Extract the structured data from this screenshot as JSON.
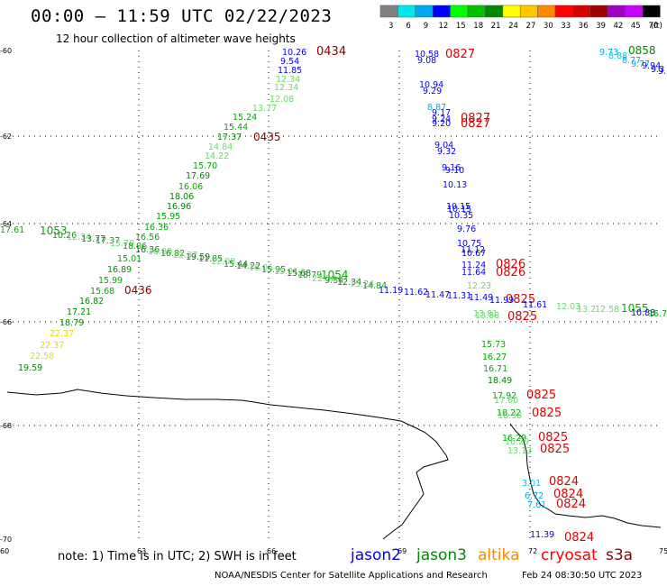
{
  "header": {
    "title": "00:00 – 11:59 UTC 02/22/2023",
    "subtitle": "12 hour collection of altimeter wave heights"
  },
  "colorbar": {
    "ticks": [
      "3",
      "6",
      "9",
      "12",
      "15",
      "18",
      "21",
      "24",
      "27",
      "30",
      "33",
      "36",
      "39",
      "42",
      "45",
      "70"
    ],
    "unit": "(ft)",
    "colors": [
      "#808080",
      "#00e8e8",
      "#00a8f0",
      "#0000ff",
      "#00ff00",
      "#00c000",
      "#008800",
      "#ffff00",
      "#ffc800",
      "#ff8800",
      "#ff0000",
      "#d80000",
      "#a00000",
      "#a000c0",
      "#c800ff",
      "#000000"
    ]
  },
  "map": {
    "y_labels": [
      "-60",
      "-62",
      "-64",
      "-66",
      "-68",
      "-70"
    ],
    "x_labels": [
      "60",
      "63",
      "66",
      "69",
      "72",
      "75"
    ],
    "lon_range": [
      60,
      75
    ],
    "lat_range": [
      -70,
      -60
    ]
  },
  "tracks": {
    "time_labels": [
      {
        "text": "0434",
        "color": "#8b0000"
      },
      {
        "text": "0435",
        "color": "#8b0000"
      },
      {
        "text": "0436",
        "color": "#8b0000"
      },
      {
        "text": "0827",
        "color": "#e00000"
      },
      {
        "text": "0827",
        "color": "#e00000"
      },
      {
        "text": "0827",
        "color": "#e00000"
      },
      {
        "text": "0826",
        "color": "#e00000"
      },
      {
        "text": "0826",
        "color": "#e00000"
      },
      {
        "text": "0825",
        "color": "#e00000"
      },
      {
        "text": "0825",
        "color": "#e00000"
      },
      {
        "text": "0825",
        "color": "#e00000"
      },
      {
        "text": "0825",
        "color": "#e00000"
      },
      {
        "text": "0825",
        "color": "#e00000"
      },
      {
        "text": "0825",
        "color": "#e00000"
      },
      {
        "text": "0824",
        "color": "#e00000"
      },
      {
        "text": "0824",
        "color": "#e00000"
      },
      {
        "text": "0824",
        "color": "#e00000"
      },
      {
        "text": "0824",
        "color": "#e00000"
      },
      {
        "text": "0858",
        "color": "#008800"
      },
      {
        "text": "1053",
        "color": "#00aa00"
      },
      {
        "text": "1054",
        "color": "#00aa00"
      },
      {
        "text": "1055",
        "color": "#00aa00"
      }
    ],
    "wave_values": [
      {
        "text": "10.26",
        "color": "#0000ff"
      },
      {
        "text": "9.54",
        "color": "#0000ff"
      },
      {
        "text": "11.85",
        "color": "#0000ff"
      },
      {
        "text": "12.34",
        "color": "#66dd66"
      },
      {
        "text": "12.34",
        "color": "#66dd66"
      },
      {
        "text": "12.08",
        "color": "#66dd66"
      },
      {
        "text": "13.77",
        "color": "#66dd66"
      },
      {
        "text": "15.24",
        "color": "#00aa00"
      },
      {
        "text": "15.44",
        "color": "#00aa00"
      },
      {
        "text": "17.37",
        "color": "#008800"
      },
      {
        "text": "14.84",
        "color": "#66dd66"
      },
      {
        "text": "14.22",
        "color": "#66dd66"
      },
      {
        "text": "15.70",
        "color": "#00aa00"
      },
      {
        "text": "17.69",
        "color": "#008800"
      },
      {
        "text": "16.06",
        "color": "#00aa00"
      },
      {
        "text": "18.06",
        "color": "#008800"
      },
      {
        "text": "16.96",
        "color": "#008800"
      },
      {
        "text": "15.95",
        "color": "#00aa00"
      },
      {
        "text": "16.36",
        "color": "#00aa00"
      },
      {
        "text": "16.56",
        "color": "#00aa00"
      },
      {
        "text": "15.01",
        "color": "#00aa00"
      },
      {
        "text": "16.89",
        "color": "#008800"
      },
      {
        "text": "15.99",
        "color": "#00aa00"
      },
      {
        "text": "15.68",
        "color": "#00aa00"
      },
      {
        "text": "16.82",
        "color": "#008800"
      },
      {
        "text": "17.21",
        "color": "#008800"
      },
      {
        "text": "18.79",
        "color": "#008800"
      },
      {
        "text": "22.37",
        "color": "#e0e000"
      },
      {
        "text": "22.37",
        "color": "#e0e000"
      },
      {
        "text": "22.58",
        "color": "#e0e000"
      },
      {
        "text": "19.59",
        "color": "#008800"
      },
      {
        "text": "17.61",
        "color": "#00aa00"
      },
      {
        "text": "10.58",
        "color": "#0000ff"
      },
      {
        "text": "9.08",
        "color": "#0000ff"
      },
      {
        "text": "10.94",
        "color": "#0000ff"
      },
      {
        "text": "9.29",
        "color": "#0000ff"
      },
      {
        "text": "8.87",
        "color": "#00a8f0"
      },
      {
        "text": "9.17",
        "color": "#0000ff"
      },
      {
        "text": "9.24",
        "color": "#0000ff"
      },
      {
        "text": "9.20",
        "color": "#0000ff"
      },
      {
        "text": "9.04",
        "color": "#0000ff"
      },
      {
        "text": "9.32",
        "color": "#0000ff"
      },
      {
        "text": "9.16",
        "color": "#0000ff"
      },
      {
        "text": "9.10",
        "color": "#0000ff"
      },
      {
        "text": "10.13",
        "color": "#0000ff"
      },
      {
        "text": "10.15",
        "color": "#0000ff"
      },
      {
        "text": "10.15",
        "color": "#0000ff"
      },
      {
        "text": "10.35",
        "color": "#0000ff"
      },
      {
        "text": "9.76",
        "color": "#0000ff"
      },
      {
        "text": "10.75",
        "color": "#0000ff"
      },
      {
        "text": "11.12",
        "color": "#0000ff"
      },
      {
        "text": "10.67",
        "color": "#0000ff"
      },
      {
        "text": "11.24",
        "color": "#0000ff"
      },
      {
        "text": "11.64",
        "color": "#0000ff"
      },
      {
        "text": "12.23",
        "color": "#66dd66"
      },
      {
        "text": "13.81",
        "color": "#66dd66"
      },
      {
        "text": "13.88",
        "color": "#66dd66"
      },
      {
        "text": "15.73",
        "color": "#00aa00"
      },
      {
        "text": "16.27",
        "color": "#00aa00"
      },
      {
        "text": "16.71",
        "color": "#00aa00"
      },
      {
        "text": "18.49",
        "color": "#008800"
      },
      {
        "text": "17.92",
        "color": "#00aa00"
      },
      {
        "text": "17.60",
        "color": "#66dd66"
      },
      {
        "text": "18.22",
        "color": "#00aa00"
      },
      {
        "text": "18.38",
        "color": "#66dd66"
      },
      {
        "text": "16.29",
        "color": "#00aa00"
      },
      {
        "text": "16.29",
        "color": "#66dd66"
      },
      {
        "text": "13.13",
        "color": "#66dd66"
      },
      {
        "text": "3.01",
        "color": "#00c8e8"
      },
      {
        "text": "6.72",
        "color": "#00a8f0"
      },
      {
        "text": "7.61",
        "color": "#00a8f0"
      },
      {
        "text": "11.39",
        "color": "#0000ff"
      },
      {
        "text": "9.73",
        "color": "#00a8f0"
      },
      {
        "text": "8.88",
        "color": "#00c8e8"
      },
      {
        "text": "8.77",
        "color": "#00a8f0"
      },
      {
        "text": "9.77",
        "color": "#00a8f0"
      },
      {
        "text": "9.94",
        "color": "#0000ff"
      },
      {
        "text": "9.3",
        "color": "#0000ff"
      },
      {
        "text": "9.8",
        "color": "#0000ff"
      },
      {
        "text": "11.19",
        "color": "#0000ff"
      },
      {
        "text": "11.62",
        "color": "#0000ff"
      },
      {
        "text": "11.47",
        "color": "#0000ff"
      },
      {
        "text": "11.31",
        "color": "#0000ff"
      },
      {
        "text": "11.49",
        "color": "#0000ff"
      },
      {
        "text": "11.99",
        "color": "#0000ff"
      },
      {
        "text": "11.61",
        "color": "#0000ff"
      },
      {
        "text": "12.03",
        "color": "#66dd66"
      },
      {
        "text": "12.58",
        "color": "#66dd66"
      },
      {
        "text": "10.88",
        "color": "#0000ff"
      },
      {
        "text": "13.2",
        "color": "#66dd66"
      },
      {
        "text": "16.7",
        "color": "#00aa00"
      }
    ]
  },
  "footer": {
    "note": "note: 1) Time is in UTC; 2) SWH is in feet",
    "legend": [
      {
        "name": "jason2",
        "color": "#0000ff"
      },
      {
        "name": "jason3",
        "color": "#008800"
      },
      {
        "name": "altika",
        "color": "#ff8800"
      },
      {
        "name": "cryosat",
        "color": "#ff0000"
      },
      {
        "name": "s3a",
        "color": "#8b0000"
      }
    ],
    "credit": "NOAA/NESDIS Center for Satellite Applications and Research",
    "generated": "Feb 24 08:30:50 UTC 2023"
  }
}
